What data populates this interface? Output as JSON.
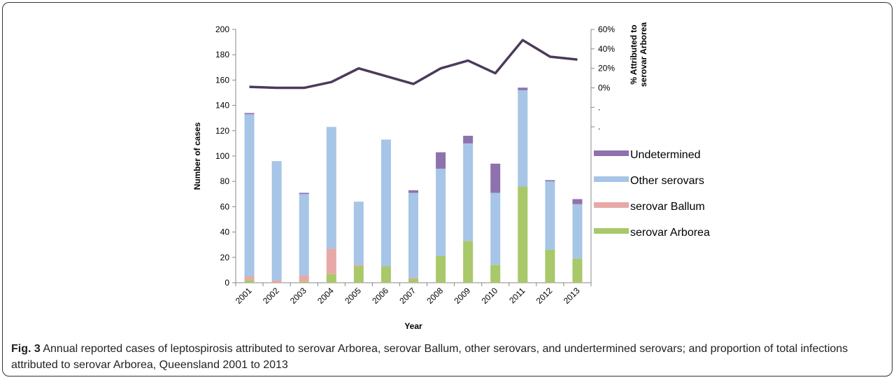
{
  "chart_data": {
    "type": "bar",
    "stacked": true,
    "xlabel": "Year",
    "ylabel": "Number of cases",
    "y2label": [
      "% Attributed to",
      "serovar Arborea"
    ],
    "categories": [
      "2001",
      "2002",
      "2003",
      "2004",
      "2005",
      "2006",
      "2007",
      "2008",
      "2009",
      "2010",
      "2011",
      "2012",
      "2013"
    ],
    "ylim": [
      0,
      200
    ],
    "yticks": [
      0,
      20,
      40,
      60,
      80,
      100,
      120,
      140,
      160,
      180,
      200
    ],
    "y2lim": [
      -200,
      60
    ],
    "y2ticks": [
      {
        "value": -40,
        "label": "."
      },
      {
        "value": -20,
        "label": "."
      },
      {
        "value": 0,
        "label": "0%"
      },
      {
        "value": 20,
        "label": "20%"
      },
      {
        "value": 40,
        "label": "40%"
      },
      {
        "value": 60,
        "label": "60%"
      }
    ],
    "series": [
      {
        "name": "serovar Arborea",
        "color": "#a9c86a",
        "values": [
          2,
          0,
          1,
          7,
          13,
          13,
          3,
          21,
          33,
          14,
          76,
          26,
          19
        ]
      },
      {
        "name": "serovar Ballum",
        "color": "#e6a9a6",
        "values": [
          3,
          2,
          5,
          20,
          1,
          0,
          1,
          0,
          0,
          0,
          0,
          0,
          0
        ]
      },
      {
        "name": "Other serovars",
        "color": "#a7c5e6",
        "values": [
          128,
          94,
          64,
          96,
          50,
          100,
          67,
          69,
          77,
          57,
          76,
          54,
          43
        ]
      },
      {
        "name": "Undetermined",
        "color": "#8e72ad",
        "values": [
          1,
          0,
          1,
          0,
          0,
          0,
          2,
          13,
          6,
          23,
          2,
          1,
          4
        ]
      },
      {
        "type": "line",
        "axis": "y2",
        "color": "#4b3a5a",
        "values": [
          1,
          0,
          0,
          6,
          20,
          12,
          4,
          20,
          28,
          15,
          49,
          32,
          29
        ]
      }
    ]
  },
  "caption": {
    "label": "Fig. 3",
    "text": "Annual reported cases of leptospirosis attributed to serovar Arborea, serovar Ballum, other serovars, and undertermined serovars; and proportion of total infections attributed to serovar Arborea, Queensland 2001 to 2013"
  }
}
